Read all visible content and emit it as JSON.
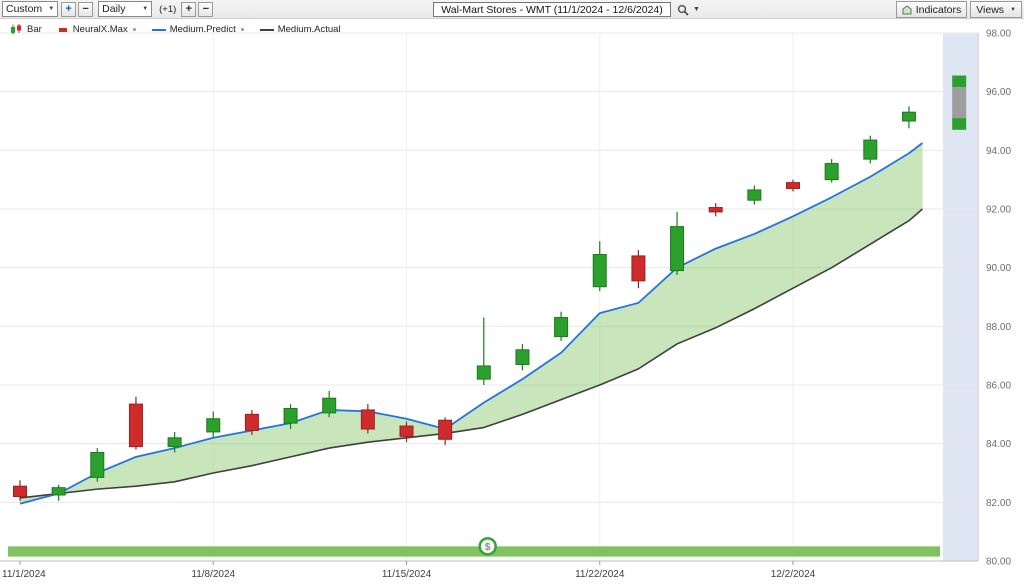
{
  "toolbar": {
    "template_select": "Custom",
    "zoom_in": "+",
    "zoom_out": "−",
    "interval_select": "Daily",
    "offset_label": "(+1)",
    "plus": "+",
    "minus": "−",
    "symbol_box": "Wal-Mart Stores - WMT (11/1/2024 - 12/6/2024)",
    "indicators_button": "Indicators",
    "views_button": "Views"
  },
  "legend": {
    "items": [
      {
        "label": "Bar"
      },
      {
        "label": "NeuralX.Max"
      },
      {
        "label": "Medium.Predict"
      },
      {
        "label": "Medium.Actual"
      }
    ]
  },
  "chart_data": {
    "type": "candlestick",
    "title": "Wal-Mart Stores - WMT (11/1/2024 - 12/6/2024)",
    "ylim": [
      80,
      98
    ],
    "ytick_step": 2,
    "grid": true,
    "legend_position": "top-left",
    "x_labels": [
      {
        "i": 0,
        "label": "11/1/2024"
      },
      {
        "i": 5,
        "label": "11/8/2024"
      },
      {
        "i": 10,
        "label": "11/15/2024"
      },
      {
        "i": 15,
        "label": "11/22/2024"
      },
      {
        "i": 20,
        "label": "12/2/2024"
      }
    ],
    "candles": [
      {
        "o": 82.55,
        "h": 82.75,
        "l": 82.05,
        "c": 82.2
      },
      {
        "o": 82.25,
        "h": 82.6,
        "l": 82.05,
        "c": 82.5
      },
      {
        "o": 82.85,
        "h": 83.85,
        "l": 82.7,
        "c": 83.7
      },
      {
        "o": 85.35,
        "h": 85.6,
        "l": 83.8,
        "c": 83.9
      },
      {
        "o": 83.9,
        "h": 84.4,
        "l": 83.7,
        "c": 84.2
      },
      {
        "o": 84.4,
        "h": 85.1,
        "l": 84.2,
        "c": 84.85
      },
      {
        "o": 85.0,
        "h": 85.15,
        "l": 84.3,
        "c": 84.45
      },
      {
        "o": 84.7,
        "h": 85.35,
        "l": 84.5,
        "c": 85.2
      },
      {
        "o": 85.05,
        "h": 85.8,
        "l": 84.9,
        "c": 85.55
      },
      {
        "o": 85.15,
        "h": 85.35,
        "l": 84.35,
        "c": 84.5
      },
      {
        "o": 84.6,
        "h": 84.75,
        "l": 84.05,
        "c": 84.25
      },
      {
        "o": 84.8,
        "h": 84.9,
        "l": 83.95,
        "c": 84.15
      },
      {
        "o": 86.2,
        "h": 88.3,
        "l": 86.0,
        "c": 86.65
      },
      {
        "o": 86.7,
        "h": 87.4,
        "l": 86.5,
        "c": 87.2
      },
      {
        "o": 87.65,
        "h": 88.5,
        "l": 87.5,
        "c": 88.3
      },
      {
        "o": 89.35,
        "h": 90.9,
        "l": 89.2,
        "c": 90.45
      },
      {
        "o": 90.4,
        "h": 90.6,
        "l": 89.3,
        "c": 89.55
      },
      {
        "o": 89.9,
        "h": 91.9,
        "l": 89.75,
        "c": 91.4
      },
      {
        "o": 92.05,
        "h": 92.2,
        "l": 91.75,
        "c": 91.9
      },
      {
        "o": 92.3,
        "h": 92.8,
        "l": 92.15,
        "c": 92.65
      },
      {
        "o": 92.9,
        "h": 93.0,
        "l": 92.6,
        "c": 92.7
      },
      {
        "o": 93.0,
        "h": 93.7,
        "l": 92.9,
        "c": 93.55
      },
      {
        "o": 93.7,
        "h": 94.5,
        "l": 93.55,
        "c": 94.35
      },
      {
        "o": 95.0,
        "h": 95.5,
        "l": 94.75,
        "c": 95.3
      }
    ],
    "x_positions": [
      0,
      1,
      2,
      3,
      4,
      5,
      6,
      7,
      8,
      9,
      10,
      11,
      12,
      13,
      14,
      15,
      16,
      17,
      18,
      19,
      20,
      21,
      22,
      23,
      23.35
    ],
    "series": [
      {
        "name": "Medium.Predict",
        "values": [
          81.95,
          82.3,
          83.0,
          83.55,
          83.85,
          84.2,
          84.45,
          84.7,
          85.15,
          85.1,
          84.85,
          84.5,
          85.4,
          86.2,
          87.1,
          88.45,
          88.8,
          90.0,
          90.65,
          91.15,
          91.75,
          92.4,
          93.1,
          93.9,
          94.25
        ]
      },
      {
        "name": "Medium.Actual",
        "values": [
          82.15,
          82.3,
          82.45,
          82.55,
          82.7,
          83.0,
          83.25,
          83.55,
          83.85,
          84.05,
          84.2,
          84.35,
          84.55,
          85.0,
          85.5,
          86.0,
          86.55,
          87.4,
          87.95,
          88.6,
          89.3,
          90.0,
          90.8,
          91.6,
          92.0
        ]
      }
    ],
    "forecast": {
      "x_index": 24.3,
      "high": 96.55,
      "body_top": 96.15,
      "body_bottom": 95.1,
      "low": 94.7
    },
    "strip": {
      "top": 80.5,
      "bottom": 80.15
    },
    "badge": {
      "x_index": 12.1,
      "y": 80.5,
      "label": "$"
    },
    "colors": {
      "up": "#2ca02c",
      "up_dark": "#1d7a1d",
      "down": "#cf2b2b",
      "down_dark": "#992222",
      "predict": "#2273e6",
      "actual": "#3f3f3f",
      "fill": "rgba(134,197,106,0.45)",
      "zone": "#dde6f2",
      "strip": "#7fc25f",
      "grid": "#e9e9e9",
      "forecast_body": "#9e9e9e"
    }
  }
}
